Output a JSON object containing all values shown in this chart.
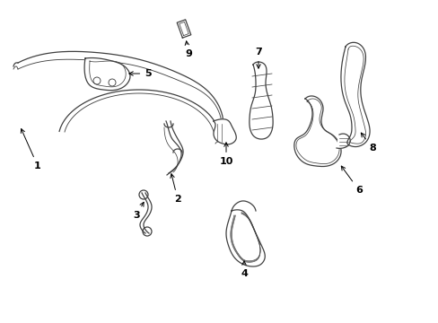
{
  "background_color": "#ffffff",
  "line_color": "#404040",
  "figsize": [
    4.89,
    3.6
  ],
  "dpi": 100,
  "xlim": [
    0,
    489
  ],
  "ylim": [
    0,
    360
  ]
}
